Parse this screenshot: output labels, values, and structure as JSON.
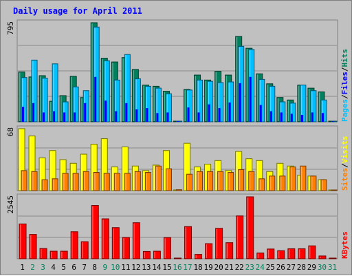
{
  "title": "Daily usage for April 2011",
  "colors": {
    "background": "#c0c0c0",
    "hits": "#00805c",
    "files": "#00c0ff",
    "pages": "#0000ff",
    "visits": "#ffff00",
    "sites": "#ff8000",
    "kbytes": "#ff0000",
    "title": "#0000ff",
    "weekday_label": "#000000",
    "weekend_label": "#00805c"
  },
  "chart_data": {
    "type": "bar",
    "title": "Daily usage for April 2011",
    "days": [
      "1",
      "2",
      "3",
      "4",
      "5",
      "6",
      "7",
      "8",
      "9",
      "10",
      "11",
      "12",
      "13",
      "14",
      "15",
      "16",
      "17",
      "18",
      "19",
      "20",
      "21",
      "22",
      "23",
      "24",
      "25",
      "26",
      "27",
      "28",
      "29",
      "30",
      "31"
    ],
    "weekend_days": [
      "2",
      "3",
      "9",
      "10",
      "16",
      "17",
      "23",
      "24",
      "30",
      "31"
    ],
    "panels": [
      {
        "name": "hits-files-pages",
        "ymax_label": "795",
        "ymax": 795,
        "legend": [
          {
            "text": "Pages",
            "color": "#00c0ff"
          },
          {
            "text": "/",
            "color": "#000000"
          },
          {
            "text": "Files",
            "color": "#0000ff"
          },
          {
            "text": "/",
            "color": "#000000"
          },
          {
            "text": "Hits",
            "color": "#00805c"
          }
        ],
        "series": [
          {
            "name": "Hits",
            "color": "#00805c",
            "values": [
              400,
              360,
              370,
              165,
              210,
              365,
              195,
              795,
              510,
              480,
              515,
              420,
              295,
              285,
              245,
              4,
              260,
              375,
              335,
              405,
              375,
              685,
              590,
              385,
              305,
              195,
              175,
              295,
              270,
              240,
              0
            ]
          },
          {
            "name": "Files",
            "color": "#00c0ff",
            "values": [
              355,
              495,
              350,
              465,
              160,
              280,
              250,
              760,
              490,
              335,
              540,
              345,
              285,
              270,
              225,
              0,
              255,
              335,
              325,
              315,
              320,
              605,
              580,
              340,
              285,
              160,
              150,
              295,
              250,
              175,
              0
            ]
          },
          {
            "name": "Pages",
            "color": "#0000ff",
            "values": [
              120,
              150,
              75,
              85,
              75,
              75,
              150,
              360,
              170,
              85,
              150,
              100,
              110,
              70,
              75,
              0,
              115,
              75,
              140,
              110,
              155,
              310,
              360,
              135,
              85,
              75,
              65,
              55,
              75,
              70,
              0
            ]
          }
        ]
      },
      {
        "name": "visits-sites",
        "ymax_label": "68",
        "ymax": 68,
        "legend": [
          {
            "text": "Sites",
            "color": "#ff8000"
          },
          {
            "text": "/",
            "color": "#000000"
          },
          {
            "text": "Visits",
            "color": "#ffff00"
          }
        ],
        "series": [
          {
            "name": "Visits",
            "color": "#ffff00",
            "values": [
              68,
              60,
              36,
              44,
              34,
              30,
              40,
              51,
              57,
              26,
              48,
              27,
              22,
              28,
              44,
              0,
              52,
              26,
              29,
              33,
              22,
              43,
              35,
              33,
              21,
              30,
              27,
              17,
              16,
              12,
              0
            ]
          },
          {
            "name": "Sites",
            "color": "#ff8000",
            "values": [
              22,
              21,
              12,
              13,
              19,
              19,
              21,
              20,
              19,
              19,
              19,
              21,
              20,
              27,
              24,
              1,
              18,
              21,
              21,
              21,
              20,
              23,
              21,
              13,
              16,
              16,
              26,
              27,
              16,
              12,
              0
            ]
          }
        ]
      },
      {
        "name": "kbytes",
        "ymax_label": "2545",
        "ymax": 2545,
        "legend": [
          {
            "text": "KBytes",
            "color": "#ff0000"
          }
        ],
        "series": [
          {
            "name": "KBytes",
            "color": "#ff0000",
            "values": [
              1430,
              1000,
              420,
              310,
              310,
              1110,
              700,
              2190,
              1640,
              1280,
              875,
              1480,
              300,
              310,
              870,
              0,
              1320,
              180,
              620,
              1250,
              660,
              1760,
              2545,
              235,
              400,
              330,
              410,
              410,
              530,
              115,
              0
            ]
          }
        ]
      }
    ]
  }
}
